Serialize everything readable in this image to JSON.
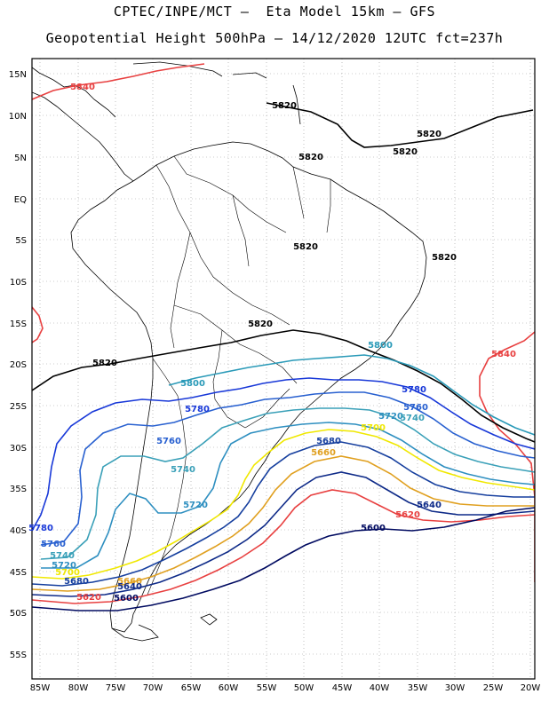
{
  "header": {
    "line1": "CPTEC/INPE/MCT –  Eta Model 15km – GFS",
    "line2": "Geopotential Height 500hPa – 14/12/2020 12UTC fct=237h"
  },
  "axes": {
    "lat_labels": [
      "15N",
      "10N",
      "5N",
      "EQ",
      "5S",
      "10S",
      "15S",
      "20S",
      "25S",
      "30S",
      "35S",
      "40S",
      "45S",
      "50S",
      "55S"
    ],
    "lon_labels": [
      "85W",
      "80W",
      "75W",
      "70W",
      "65W",
      "60W",
      "55W",
      "50W",
      "45W",
      "40W",
      "35W",
      "30W",
      "25W",
      "20W"
    ]
  },
  "contour_colors": {
    "5600": "#000a60",
    "5640": "#0e2a88",
    "5680": "#163f9e",
    "5700": "#f0e800",
    "5720": "#2e8fc0",
    "5740": "#3aa0b8",
    "5760": "#2860d0",
    "5780": "#1838d8",
    "5800": "#2a9ab8",
    "5820": "#000000",
    "5840": "#e84040",
    "5860": "#e0a020"
  },
  "contour_labels": [
    {
      "text": "5840",
      "color_key": "5840"
    },
    {
      "text": "5820",
      "color_key": "5820"
    },
    {
      "text": "5820",
      "color_key": "5820"
    },
    {
      "text": "5820",
      "color_key": "5820"
    },
    {
      "text": "5820",
      "color_key": "5820"
    },
    {
      "text": "5820",
      "color_key": "5820"
    },
    {
      "text": "5820",
      "color_key": "5820"
    },
    {
      "text": "5820",
      "color_key": "5820"
    },
    {
      "text": "5820",
      "color_key": "5820"
    },
    {
      "text": "5800",
      "color_key": "5800"
    },
    {
      "text": "5840",
      "color_key": "5840"
    },
    {
      "text": "5800",
      "color_key": "5800"
    },
    {
      "text": "5780",
      "color_key": "5780"
    },
    {
      "text": "5780",
      "color_key": "5780"
    },
    {
      "text": "5760",
      "color_key": "5760"
    },
    {
      "text": "5720",
      "color_key": "5720"
    },
    {
      "text": "5740",
      "color_key": "5740"
    },
    {
      "text": "5700",
      "color_key": "5700"
    },
    {
      "text": "5760",
      "color_key": "5760"
    },
    {
      "text": "5680",
      "color_key": "5680"
    },
    {
      "text": "5740",
      "color_key": "5740"
    },
    {
      "text": "5660",
      "color_key": "5860"
    },
    {
      "text": "5720",
      "color_key": "5720"
    },
    {
      "text": "5640",
      "color_key": "5640"
    },
    {
      "text": "5620",
      "color_key": "5840"
    },
    {
      "text": "5600",
      "color_key": "5600"
    },
    {
      "text": "5780",
      "color_key": "5780"
    },
    {
      "text": "5760",
      "color_key": "5760"
    },
    {
      "text": "5740",
      "color_key": "5740"
    },
    {
      "text": "5720",
      "color_key": "5720"
    },
    {
      "text": "5700",
      "color_key": "5700"
    },
    {
      "text": "5680",
      "color_key": "5680"
    },
    {
      "text": "5660",
      "color_key": "5860"
    },
    {
      "text": "5640",
      "color_key": "5640"
    },
    {
      "text": "5620",
      "color_key": "5840"
    },
    {
      "text": "5600",
      "color_key": "5600"
    }
  ]
}
